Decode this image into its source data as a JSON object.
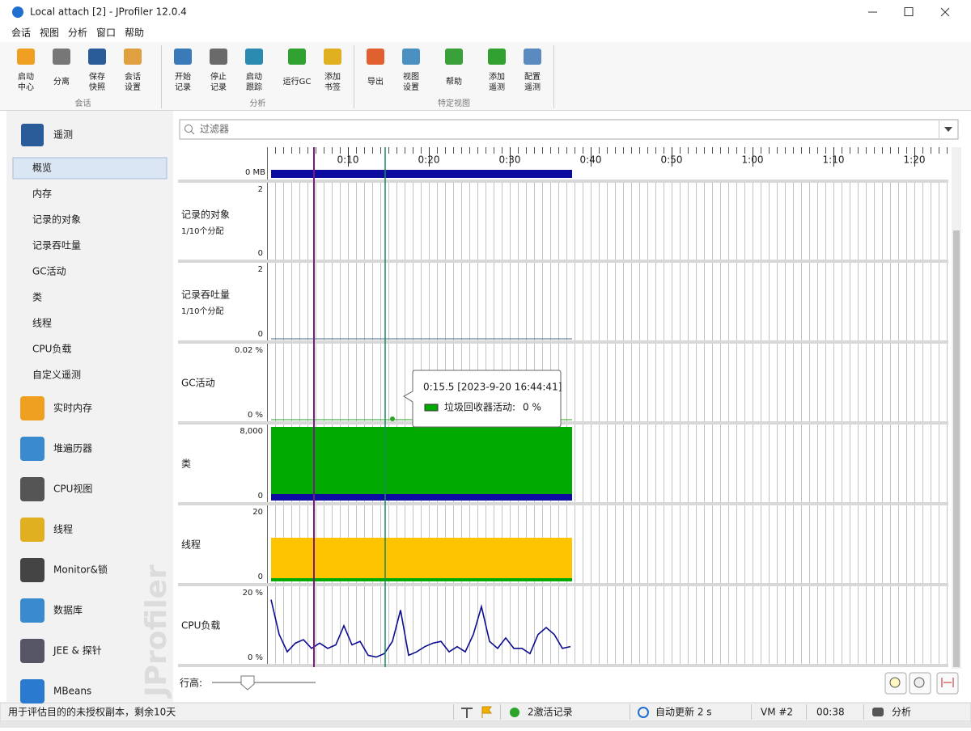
{
  "window": {
    "title": "Local attach [2] - JProfiler 12.0.4"
  },
  "menu": [
    "会话",
    "视图",
    "分析",
    "窗口",
    "帮助"
  ],
  "toolbar": {
    "groups": [
      {
        "label": "会话",
        "buttons": [
          [
            "启动",
            "中心"
          ],
          [
            "分离"
          ],
          [
            "保存",
            "快照"
          ],
          [
            "会话",
            "设置"
          ]
        ]
      },
      {
        "label": "分析",
        "buttons": [
          [
            "开始",
            "记录"
          ],
          [
            "停止",
            "记录"
          ],
          [
            "启动",
            "跟踪"
          ],
          [
            "运行GC"
          ],
          [
            "添加",
            "书签"
          ]
        ]
      },
      {
        "label": "特定视图",
        "buttons": [
          [
            "导出"
          ],
          [
            "视图",
            "设置"
          ],
          [
            "帮助"
          ],
          [
            "添加",
            "遥测"
          ],
          [
            "配置",
            "遥测"
          ]
        ]
      }
    ]
  },
  "sidebar": {
    "header": "遥测",
    "items": [
      "概览",
      "内存",
      "记录的对象",
      "记录吞吐量",
      "GC活动",
      "类",
      "线程",
      "CPU负载",
      "自定义遥测"
    ],
    "selected": 0,
    "sections": [
      "实时内存",
      "堆遍历器",
      "CPU视图",
      "线程",
      "Monitor&锁",
      "数据库",
      "JEE & 探针",
      "MBeans"
    ],
    "watermark": "JProfiler"
  },
  "filter": {
    "placeholder": "过滤器"
  },
  "timeline": {
    "ticks": [
      {
        "value": 10,
        "label": "0:10"
      },
      {
        "value": 20,
        "label": "0:20"
      },
      {
        "value": 30,
        "label": "0:30"
      },
      {
        "value": 40,
        "label": "0:40"
      },
      {
        "value": 50,
        "label": "0:50"
      },
      {
        "value": 60,
        "label": "1:00"
      },
      {
        "value": 70,
        "label": "1:10"
      },
      {
        "value": 80,
        "label": "1:20"
      }
    ]
  },
  "rows": [
    {
      "min": "0 MB"
    },
    {
      "label": "记录的对象",
      "sublabel": "1/10个分配",
      "max": "2",
      "min": "0"
    },
    {
      "label": "记录吞吐量",
      "sublabel": "1/10个分配",
      "max": "2",
      "min": "0"
    },
    {
      "label": "GC活动",
      "max": "0.02 %",
      "min": "0 %"
    },
    {
      "label": "类",
      "max": "8,000",
      "min": "0"
    },
    {
      "label": "线程",
      "max": "20",
      "min": "0"
    },
    {
      "label": "CPU负载",
      "max": "20 %",
      "min": "0 %"
    }
  ],
  "cpu_load": {
    "ylim": [
      0,
      20
    ],
    "x": [
      0.5,
      1.5,
      2.5,
      3.5,
      4.5,
      5.5,
      6.5,
      7.5,
      8.5,
      9.5,
      10.5,
      11.5,
      12.5,
      13.5,
      14.5,
      15.5,
      16.5,
      17.5,
      18.5,
      19.5,
      20.5,
      21.5,
      22.5,
      23.5,
      24.5,
      25.5,
      26.5,
      27.5,
      28.5,
      29.5,
      30.5,
      31.5,
      32.5,
      33.5,
      34.5,
      35.5,
      36.5,
      37.5
    ],
    "values": [
      18,
      8,
      3,
      5.5,
      6.5,
      4,
      5.5,
      4,
      5,
      10.5,
      5,
      6,
      2,
      1.5,
      2.5,
      6,
      15,
      2,
      3,
      4.5,
      5.5,
      6,
      3,
      4.5,
      3,
      8,
      16,
      6,
      4,
      7,
      4,
      4,
      2.5,
      8,
      10,
      8,
      4,
      4.5
    ]
  },
  "tooltip": {
    "time": "0:15.5 [2023-9-20 16:44:41]",
    "legend": "垃圾回收器活动:",
    "value": "0 %"
  },
  "row_height_label": "行高:",
  "status_bar": {
    "notice": "用于评估目的的未授权副本，剩余10天",
    "recordings": "2激活记录",
    "auto_update": "自动更新 2 s",
    "vm": "VM #2",
    "elapsed": "00:38",
    "mode": "分析"
  }
}
